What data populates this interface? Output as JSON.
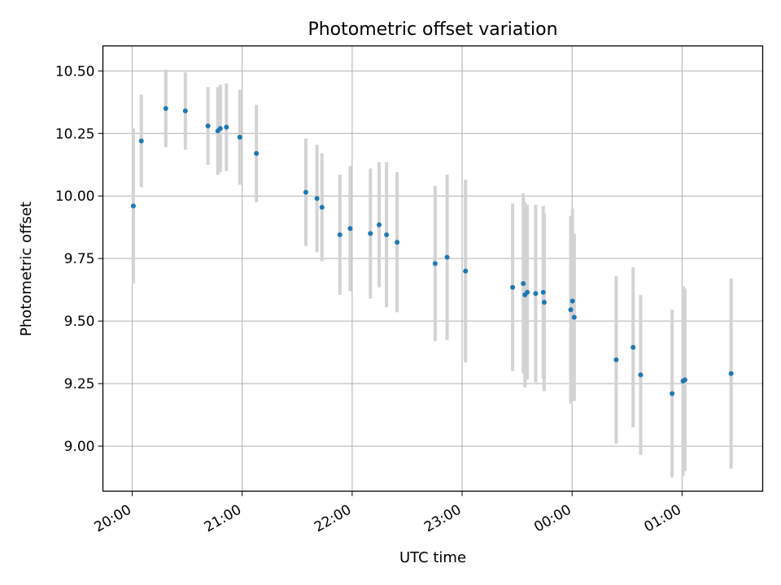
{
  "chart_data": {
    "type": "scatter",
    "title": "Photometric offset variation",
    "xlabel": "UTC time",
    "ylabel": "Photometric offset",
    "x_tick_labels": [
      "20:00",
      "21:00",
      "22:00",
      "23:00",
      "00:00",
      "01:00"
    ],
    "y_tick_labels": [
      "9.00",
      "9.25",
      "9.50",
      "9.75",
      "10.00",
      "10.25",
      "10.50"
    ],
    "xlim": [
      "2023-01-01 19:44",
      "2023-01-02 01:44"
    ],
    "ylim": [
      8.82,
      10.6
    ],
    "grid": true,
    "colors": {
      "point": "#1f77b4",
      "errorbar": "#d3d3d3",
      "grid": "#b0b0b0"
    },
    "points": [
      {
        "x": "2023-01-01 20:00:36",
        "y": 9.96,
        "err": 0.31
      },
      {
        "x": "2023-01-01 20:04:58",
        "y": 10.22,
        "err": 0.185
      },
      {
        "x": "2023-01-01 20:18:18",
        "y": 10.35,
        "err": 0.155
      },
      {
        "x": "2023-01-01 20:28:59",
        "y": 10.34,
        "err": 0.155
      },
      {
        "x": "2023-01-01 20:41:20",
        "y": 10.28,
        "err": 0.155
      },
      {
        "x": "2023-01-01 20:46:42",
        "y": 10.26,
        "err": 0.175
      },
      {
        "x": "2023-01-01 20:48:04",
        "y": 10.27,
        "err": 0.175
      },
      {
        "x": "2023-01-01 20:51:23",
        "y": 10.275,
        "err": 0.175
      },
      {
        "x": "2023-01-01 20:58:42",
        "y": 10.235,
        "err": 0.19
      },
      {
        "x": "2023-01-01 21:07:45",
        "y": 10.17,
        "err": 0.195
      },
      {
        "x": "2023-01-01 21:34:44",
        "y": 10.015,
        "err": 0.215
      },
      {
        "x": "2023-01-01 21:40:48",
        "y": 9.99,
        "err": 0.215
      },
      {
        "x": "2023-01-01 21:43:32",
        "y": 9.955,
        "err": 0.215
      },
      {
        "x": "2023-01-01 21:53:18",
        "y": 9.845,
        "err": 0.24
      },
      {
        "x": "2023-01-01 21:58:55",
        "y": 9.87,
        "err": 0.25
      },
      {
        "x": "2023-01-01 22:09:57",
        "y": 9.85,
        "err": 0.26
      },
      {
        "x": "2023-01-01 22:14:43",
        "y": 9.885,
        "err": 0.25
      },
      {
        "x": "2023-01-01 22:18:45",
        "y": 9.845,
        "err": 0.29
      },
      {
        "x": "2023-01-01 22:24:31",
        "y": 9.815,
        "err": 0.28
      },
      {
        "x": "2023-01-01 22:45:16",
        "y": 9.73,
        "err": 0.31
      },
      {
        "x": "2023-01-01 22:51:48",
        "y": 9.755,
        "err": 0.33
      },
      {
        "x": "2023-01-01 23:01:51",
        "y": 9.7,
        "err": 0.365
      },
      {
        "x": "2023-01-01 23:27:33",
        "y": 9.635,
        "err": 0.335
      },
      {
        "x": "2023-01-01 23:33:23",
        "y": 9.65,
        "err": 0.36
      },
      {
        "x": "2023-01-01 23:34:15",
        "y": 9.605,
        "err": 0.37
      },
      {
        "x": "2023-01-01 23:35:34",
        "y": 9.615,
        "err": 0.35
      },
      {
        "x": "2023-01-01 23:40:07",
        "y": 9.61,
        "err": 0.355
      },
      {
        "x": "2023-01-01 23:44:15",
        "y": 9.615,
        "err": 0.345
      },
      {
        "x": "2023-01-01 23:44:47",
        "y": 9.575,
        "err": 0.355
      },
      {
        "x": "2023-01-01 23:59:15",
        "y": 9.545,
        "err": 0.375
      },
      {
        "x": "2023-01-02 00:00:12",
        "y": 9.58,
        "err": 0.37
      },
      {
        "x": "2023-01-02 00:01:10",
        "y": 9.515,
        "err": 0.335
      },
      {
        "x": "2023-01-02 00:24:04",
        "y": 9.345,
        "err": 0.335
      },
      {
        "x": "2023-01-02 00:33:18",
        "y": 9.395,
        "err": 0.32
      },
      {
        "x": "2023-01-02 00:37:24",
        "y": 9.285,
        "err": 0.32
      },
      {
        "x": "2023-01-02 00:54:34",
        "y": 9.21,
        "err": 0.335
      },
      {
        "x": "2023-01-02 01:00:31",
        "y": 9.26,
        "err": 0.38
      },
      {
        "x": "2023-01-02 01:01:34",
        "y": 9.265,
        "err": 0.365
      },
      {
        "x": "2023-01-02 01:26:46",
        "y": 9.29,
        "err": 0.38
      }
    ]
  }
}
